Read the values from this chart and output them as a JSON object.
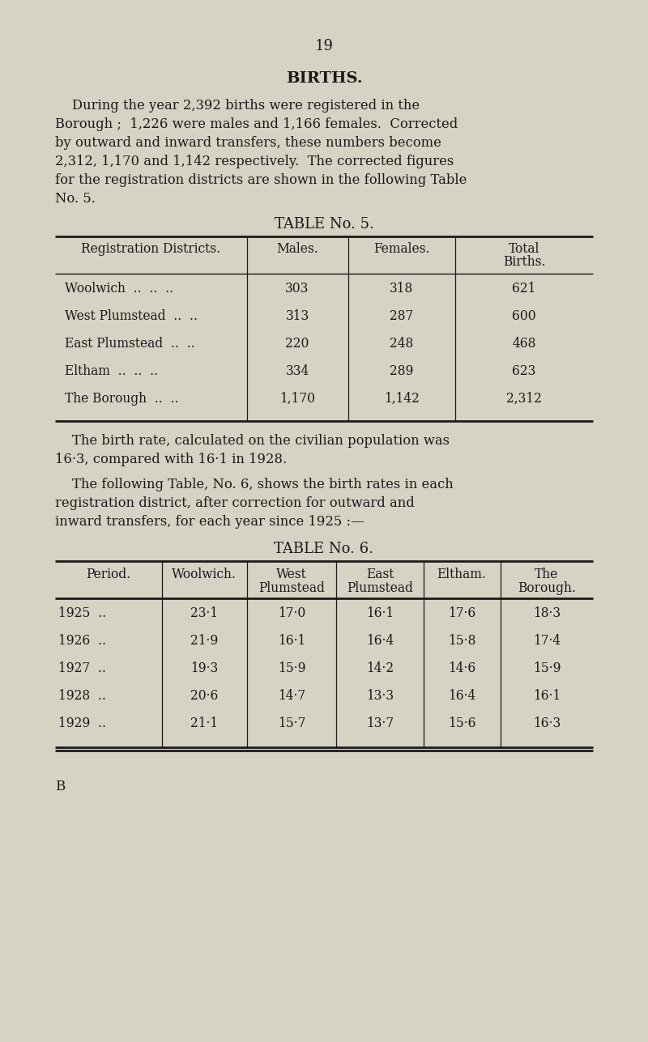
{
  "bg_color": "#d6d2c4",
  "text_color": "#1a1a1a",
  "page_number": "19",
  "section_title": "BIRTHS.",
  "p1_lines": [
    "    During the year 2,392 births were registered in the",
    "Borough ;  1,226 were males and 1,166 females.  Corrected",
    "by outward and inward transfers, these numbers become",
    "2,312, 1,170 and 1,142 respectively.  The corrected figures",
    "for the registration districts are shown in the following Table",
    "No. 5."
  ],
  "table5_title": "TABLE No. 5.",
  "table5_col_headers": [
    "Registration Districts.",
    "Males.",
    "Females.",
    "Total",
    "Births."
  ],
  "table5_row_labels": [
    "Woolwich  ..  ..  ..",
    "West Plumstead  ..  ..",
    "East Plumstead  ..  ..",
    "Eltham  ..  ..  ..",
    "The Borough  ..  .."
  ],
  "table5_males": [
    "303",
    "313",
    "220",
    "334",
    "1,170"
  ],
  "table5_females": [
    "318",
    "287",
    "248",
    "289",
    "1,142"
  ],
  "table5_totals": [
    "621",
    "600",
    "468",
    "623",
    "2,312"
  ],
  "p2_lines": [
    "    The birth rate, calculated on the civilian population was",
    "16·3, compared with 16·1 in 1928."
  ],
  "p3_lines": [
    "    The following Table, No. 6, shows the birth rates in each",
    "registration district, after correction for outward and",
    "inward transfers, for each year since 1925 :—"
  ],
  "table6_title": "TABLE No. 6.",
  "table6_col_headers_line1": [
    "Period.",
    "Woolwich.",
    "West",
    "East",
    "Eltham.",
    "The"
  ],
  "table6_col_headers_line2": [
    "",
    "",
    "Plumstead",
    "Plumstead",
    "",
    "Borough."
  ],
  "table6_years": [
    "1925  ..",
    "1926  ..",
    "1927  ..",
    "1928  ..",
    "1929  .."
  ],
  "table6_woolwich": [
    "23·1",
    "21·9",
    "19·3",
    "20·6",
    "21·1"
  ],
  "table6_west_plum": [
    "17·0",
    "16·1",
    "15·9",
    "14·7",
    "15·7"
  ],
  "table6_east_plum": [
    "16·1",
    "16·4",
    "14·2",
    "13·3",
    "13·7"
  ],
  "table6_eltham": [
    "17·6",
    "15·8",
    "14·6",
    "16·4",
    "15·6"
  ],
  "table6_borough": [
    "18·3",
    "17·4",
    "15·9",
    "16·1",
    "16·3"
  ],
  "footer_letter": "B"
}
